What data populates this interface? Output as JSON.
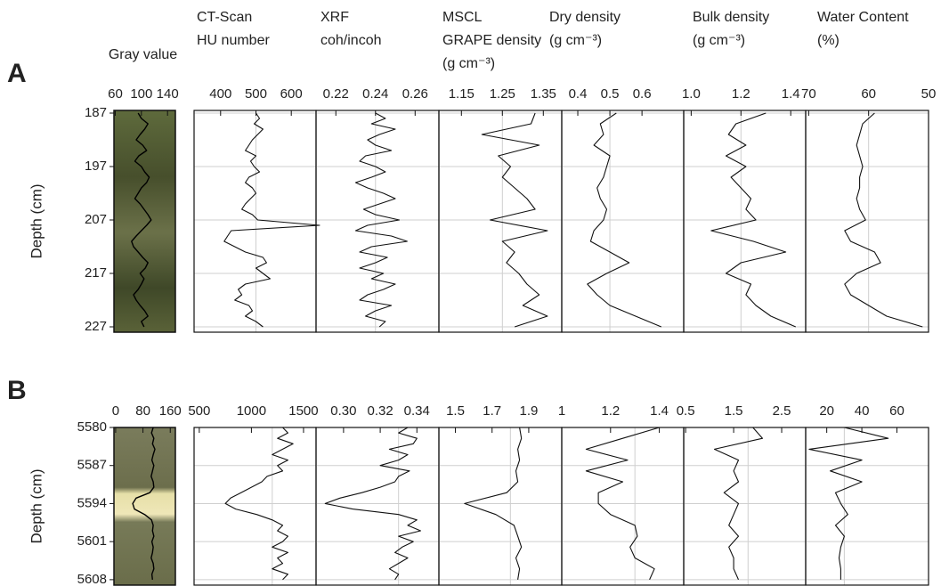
{
  "chart_data": [
    {
      "type": "line",
      "panel": "A",
      "title": [
        "Gray value"
      ],
      "ylabel": "Depth (cm)",
      "ylim": [
        186.5,
        228
      ],
      "yticks": [
        187,
        197,
        207,
        217,
        227
      ],
      "xlim": [
        58,
        152
      ],
      "xticks": [
        60,
        100,
        140
      ],
      "depth": [
        187,
        188,
        189,
        190,
        191,
        192,
        193,
        194,
        195,
        196,
        197,
        198,
        199,
        200,
        201,
        202,
        203,
        204,
        205,
        206,
        207,
        208,
        209,
        210,
        211,
        212,
        213,
        214,
        215,
        216,
        217,
        218,
        219,
        220,
        221,
        222,
        223,
        224,
        225,
        226,
        227
      ],
      "values": [
        95,
        100,
        110,
        105,
        98,
        92,
        102,
        108,
        96,
        90,
        100,
        105,
        112,
        108,
        100,
        95,
        90,
        98,
        104,
        110,
        115,
        108,
        100,
        92,
        85,
        88,
        95,
        102,
        110,
        106,
        98,
        104,
        100,
        95,
        88,
        92,
        98,
        105,
        110,
        100,
        104
      ]
    },
    {
      "type": "line",
      "title": [
        "CT-Scan",
        "HU number"
      ],
      "xlim": [
        325,
        670
      ],
      "xticks": [
        400,
        500,
        600
      ],
      "xgrid": 500,
      "depth": [
        187,
        188,
        189,
        190,
        191,
        192,
        193,
        194,
        195,
        196,
        197,
        198,
        199,
        200,
        201,
        202,
        203,
        204,
        205,
        206,
        207,
        208,
        209,
        210,
        211,
        212,
        213,
        214,
        215,
        216,
        217,
        218,
        219,
        220,
        221,
        222,
        223,
        224,
        225,
        226,
        227
      ],
      "values": [
        500,
        510,
        495,
        520,
        505,
        490,
        480,
        470,
        500,
        485,
        495,
        510,
        480,
        470,
        490,
        500,
        485,
        470,
        460,
        490,
        505,
        680,
        430,
        420,
        410,
        440,
        470,
        520,
        530,
        500,
        520,
        540,
        470,
        450,
        460,
        440,
        480,
        490,
        470,
        500,
        520
      ]
    },
    {
      "type": "line",
      "title": [
        "XRF",
        "coh/incoh"
      ],
      "xlim": [
        0.21,
        0.272
      ],
      "xticks": [
        0.22,
        0.24,
        0.26
      ],
      "xgrid": 0.24,
      "depth": [
        187,
        188,
        189,
        190,
        191,
        192,
        193,
        194,
        195,
        196,
        197,
        198,
        199,
        200,
        201,
        202,
        203,
        204,
        205,
        206,
        207,
        208,
        209,
        210,
        211,
        212,
        213,
        214,
        215,
        216,
        217,
        218,
        219,
        220,
        221,
        222,
        223,
        224,
        225,
        226,
        227
      ],
      "values": [
        0.24,
        0.245,
        0.238,
        0.25,
        0.242,
        0.236,
        0.24,
        0.248,
        0.235,
        0.232,
        0.24,
        0.245,
        0.238,
        0.23,
        0.236,
        0.244,
        0.25,
        0.242,
        0.234,
        0.24,
        0.252,
        0.236,
        0.23,
        0.248,
        0.256,
        0.238,
        0.232,
        0.246,
        0.24,
        0.232,
        0.244,
        0.238,
        0.25,
        0.244,
        0.236,
        0.232,
        0.248,
        0.24,
        0.235,
        0.245,
        0.242
      ]
    },
    {
      "type": "line",
      "title": [
        "MSCL",
        "GRAPE density",
        "(g cm⁻³)"
      ],
      "xlim": [
        1.095,
        1.395
      ],
      "xticks": [
        1.15,
        1.25,
        1.35
      ],
      "xgrid": 1.25,
      "depth": [
        187,
        189,
        191,
        193,
        195,
        197,
        199,
        201,
        203,
        205,
        207,
        209,
        211,
        213,
        215,
        217,
        219,
        221,
        223,
        225,
        227
      ],
      "values": [
        1.33,
        1.32,
        1.2,
        1.34,
        1.24,
        1.27,
        1.25,
        1.28,
        1.31,
        1.33,
        1.22,
        1.36,
        1.25,
        1.28,
        1.26,
        1.29,
        1.31,
        1.34,
        1.3,
        1.36,
        1.28
      ]
    },
    {
      "type": "line",
      "title": [
        "Dry density",
        "(g cm⁻³)"
      ],
      "xlim": [
        0.35,
        0.73
      ],
      "xticks": [
        0.4,
        0.5,
        0.6
      ],
      "xgrid": 0.5,
      "depth": [
        187,
        189,
        191,
        193,
        195,
        197,
        199,
        201,
        203,
        205,
        207,
        209,
        211,
        213,
        215,
        217,
        219,
        221,
        223,
        225,
        227
      ],
      "values": [
        0.52,
        0.47,
        0.48,
        0.45,
        0.5,
        0.49,
        0.48,
        0.46,
        0.47,
        0.49,
        0.48,
        0.45,
        0.44,
        0.5,
        0.56,
        0.49,
        0.43,
        0.46,
        0.5,
        0.58,
        0.66
      ]
    },
    {
      "type": "line",
      "title": [
        "Bulk density",
        "(g cm⁻³)"
      ],
      "xlim": [
        0.97,
        1.46
      ],
      "xticks": [
        {
          "value": 1,
          "label": "1.0"
        },
        1.2,
        1.4
      ],
      "xgrid": 1.2,
      "depth": [
        187,
        189,
        191,
        193,
        195,
        197,
        199,
        201,
        203,
        205,
        207,
        209,
        211,
        213,
        215,
        217,
        219,
        221,
        223,
        225,
        227
      ],
      "values": [
        1.3,
        1.18,
        1.15,
        1.22,
        1.14,
        1.22,
        1.16,
        1.2,
        1.24,
        1.22,
        1.26,
        1.08,
        1.25,
        1.38,
        1.2,
        1.14,
        1.24,
        1.22,
        1.26,
        1.32,
        1.42
      ]
    },
    {
      "type": "line",
      "title": [
        "Water Content",
        "(%)"
      ],
      "xlim": [
        70.5,
        50
      ],
      "xticks": [
        70,
        60,
        50
      ],
      "xgrid": 60,
      "depth": [
        187,
        189,
        191,
        193,
        195,
        197,
        199,
        201,
        203,
        205,
        207,
        209,
        211,
        213,
        215,
        217,
        219,
        221,
        223,
        225,
        227
      ],
      "values": [
        59,
        61,
        61.5,
        62,
        61.5,
        61,
        61.5,
        61.5,
        62,
        61.5,
        60.5,
        64,
        63,
        59,
        58,
        62,
        64,
        63,
        60,
        57,
        51
      ]
    },
    {
      "type": "line",
      "panel": "B",
      "ylabel": "Depth (cm)",
      "ylim": [
        5580,
        5609
      ],
      "yticks": [
        5580,
        5587,
        5594,
        5601,
        5608
      ],
      "xlim": [
        -5,
        175
      ],
      "xticks": [
        0,
        80,
        160
      ],
      "depth": [
        5580,
        5581,
        5582,
        5583,
        5584,
        5585,
        5586,
        5587,
        5588,
        5589,
        5590,
        5591,
        5592,
        5593,
        5594,
        5595,
        5596,
        5597,
        5598,
        5599,
        5600,
        5601,
        5602,
        5603,
        5604,
        5605,
        5606,
        5607,
        5608
      ],
      "values": [
        110,
        105,
        112,
        108,
        115,
        110,
        106,
        112,
        108,
        104,
        110,
        112,
        100,
        60,
        50,
        55,
        85,
        105,
        110,
        108,
        112,
        106,
        110,
        108,
        104,
        110,
        112,
        106,
        108
      ]
    },
    {
      "type": "line",
      "xlim": [
        450,
        1620
      ],
      "xticks": [
        500,
        1000,
        1500
      ],
      "xgrid": 1200,
      "depth": [
        5580,
        5581,
        5582,
        5583,
        5584,
        5585,
        5586,
        5587,
        5588,
        5589,
        5590,
        5591,
        5592,
        5593,
        5594,
        5595,
        5596,
        5597,
        5598,
        5599,
        5600,
        5601,
        5602,
        5603,
        5604,
        5605,
        5606,
        5607,
        5608
      ],
      "values": [
        1300,
        1350,
        1250,
        1400,
        1300,
        1200,
        1350,
        1250,
        1300,
        1150,
        1100,
        1000,
        900,
        800,
        750,
        850,
        1050,
        1200,
        1300,
        1250,
        1350,
        1300,
        1200,
        1350,
        1250,
        1300,
        1200,
        1350,
        1300
      ]
    },
    {
      "type": "line",
      "xlim": [
        0.285,
        0.352
      ],
      "xticks": [
        {
          "value": 0.3,
          "label": "0.30"
        },
        0.32,
        0.34
      ],
      "xgrid": 0.33,
      "depth": [
        5580,
        5581,
        5582,
        5583,
        5584,
        5585,
        5586,
        5587,
        5588,
        5589,
        5590,
        5591,
        5592,
        5593,
        5594,
        5595,
        5596,
        5597,
        5598,
        5599,
        5600,
        5601,
        5602,
        5603,
        5604,
        5605,
        5606,
        5607,
        5608
      ],
      "values": [
        0.335,
        0.33,
        0.34,
        0.338,
        0.325,
        0.335,
        0.33,
        0.32,
        0.336,
        0.33,
        0.328,
        0.32,
        0.31,
        0.298,
        0.29,
        0.305,
        0.33,
        0.34,
        0.335,
        0.342,
        0.33,
        0.338,
        0.332,
        0.328,
        0.335,
        0.33,
        0.325,
        0.33,
        0.328
      ]
    },
    {
      "type": "line",
      "xlim": [
        1.41,
        2.08
      ],
      "xticks": [
        1.5,
        1.7,
        1.9
      ],
      "xgrid": 1.8,
      "depth": [
        5580,
        5582,
        5584,
        5586,
        5588,
        5590,
        5592,
        5594,
        5596,
        5598,
        5600,
        5602,
        5604,
        5606,
        5608
      ],
      "values": [
        1.85,
        1.86,
        1.84,
        1.85,
        1.83,
        1.84,
        1.78,
        1.55,
        1.72,
        1.82,
        1.84,
        1.86,
        1.83,
        1.85,
        1.84
      ]
    },
    {
      "type": "line",
      "xlim": [
        1,
        1.5
      ],
      "xticks": [
        1,
        1.2,
        1.4
      ],
      "xgrid": 1.3,
      "depth": [
        5580,
        5582,
        5584,
        5586,
        5588,
        5590,
        5592,
        5594,
        5596,
        5598,
        5600,
        5602,
        5604,
        5606,
        5608
      ],
      "values": [
        1.4,
        1.25,
        1.1,
        1.27,
        1.1,
        1.25,
        1.15,
        1.15,
        1.2,
        1.3,
        1.31,
        1.28,
        1.3,
        1.38,
        1.36
      ]
    },
    {
      "type": "line",
      "xlim": [
        0.46,
        3
      ],
      "xticks": [
        0.5,
        1.5,
        2.5
      ],
      "xgrid": 1.8,
      "depth": [
        5580,
        5582,
        5584,
        5586,
        5588,
        5590,
        5592,
        5594,
        5596,
        5598,
        5600,
        5602,
        5604,
        5606,
        5608
      ],
      "values": [
        1.9,
        2.1,
        1.1,
        1.6,
        1.5,
        1.6,
        1.3,
        1.6,
        1.5,
        1.4,
        1.6,
        1.4,
        1.5,
        1.5,
        1.6
      ]
    },
    {
      "type": "line",
      "xlim": [
        8,
        78
      ],
      "xticks": [
        20,
        40,
        60
      ],
      "xgrid": 30,
      "depth": [
        5580,
        5582,
        5584,
        5586,
        5588,
        5590,
        5592,
        5594,
        5596,
        5598,
        5600,
        5602,
        5604,
        5606,
        5608
      ],
      "values": [
        30,
        55,
        10,
        40,
        22,
        40,
        25,
        28,
        32,
        25,
        30,
        28,
        27,
        28,
        28
      ]
    }
  ]
}
